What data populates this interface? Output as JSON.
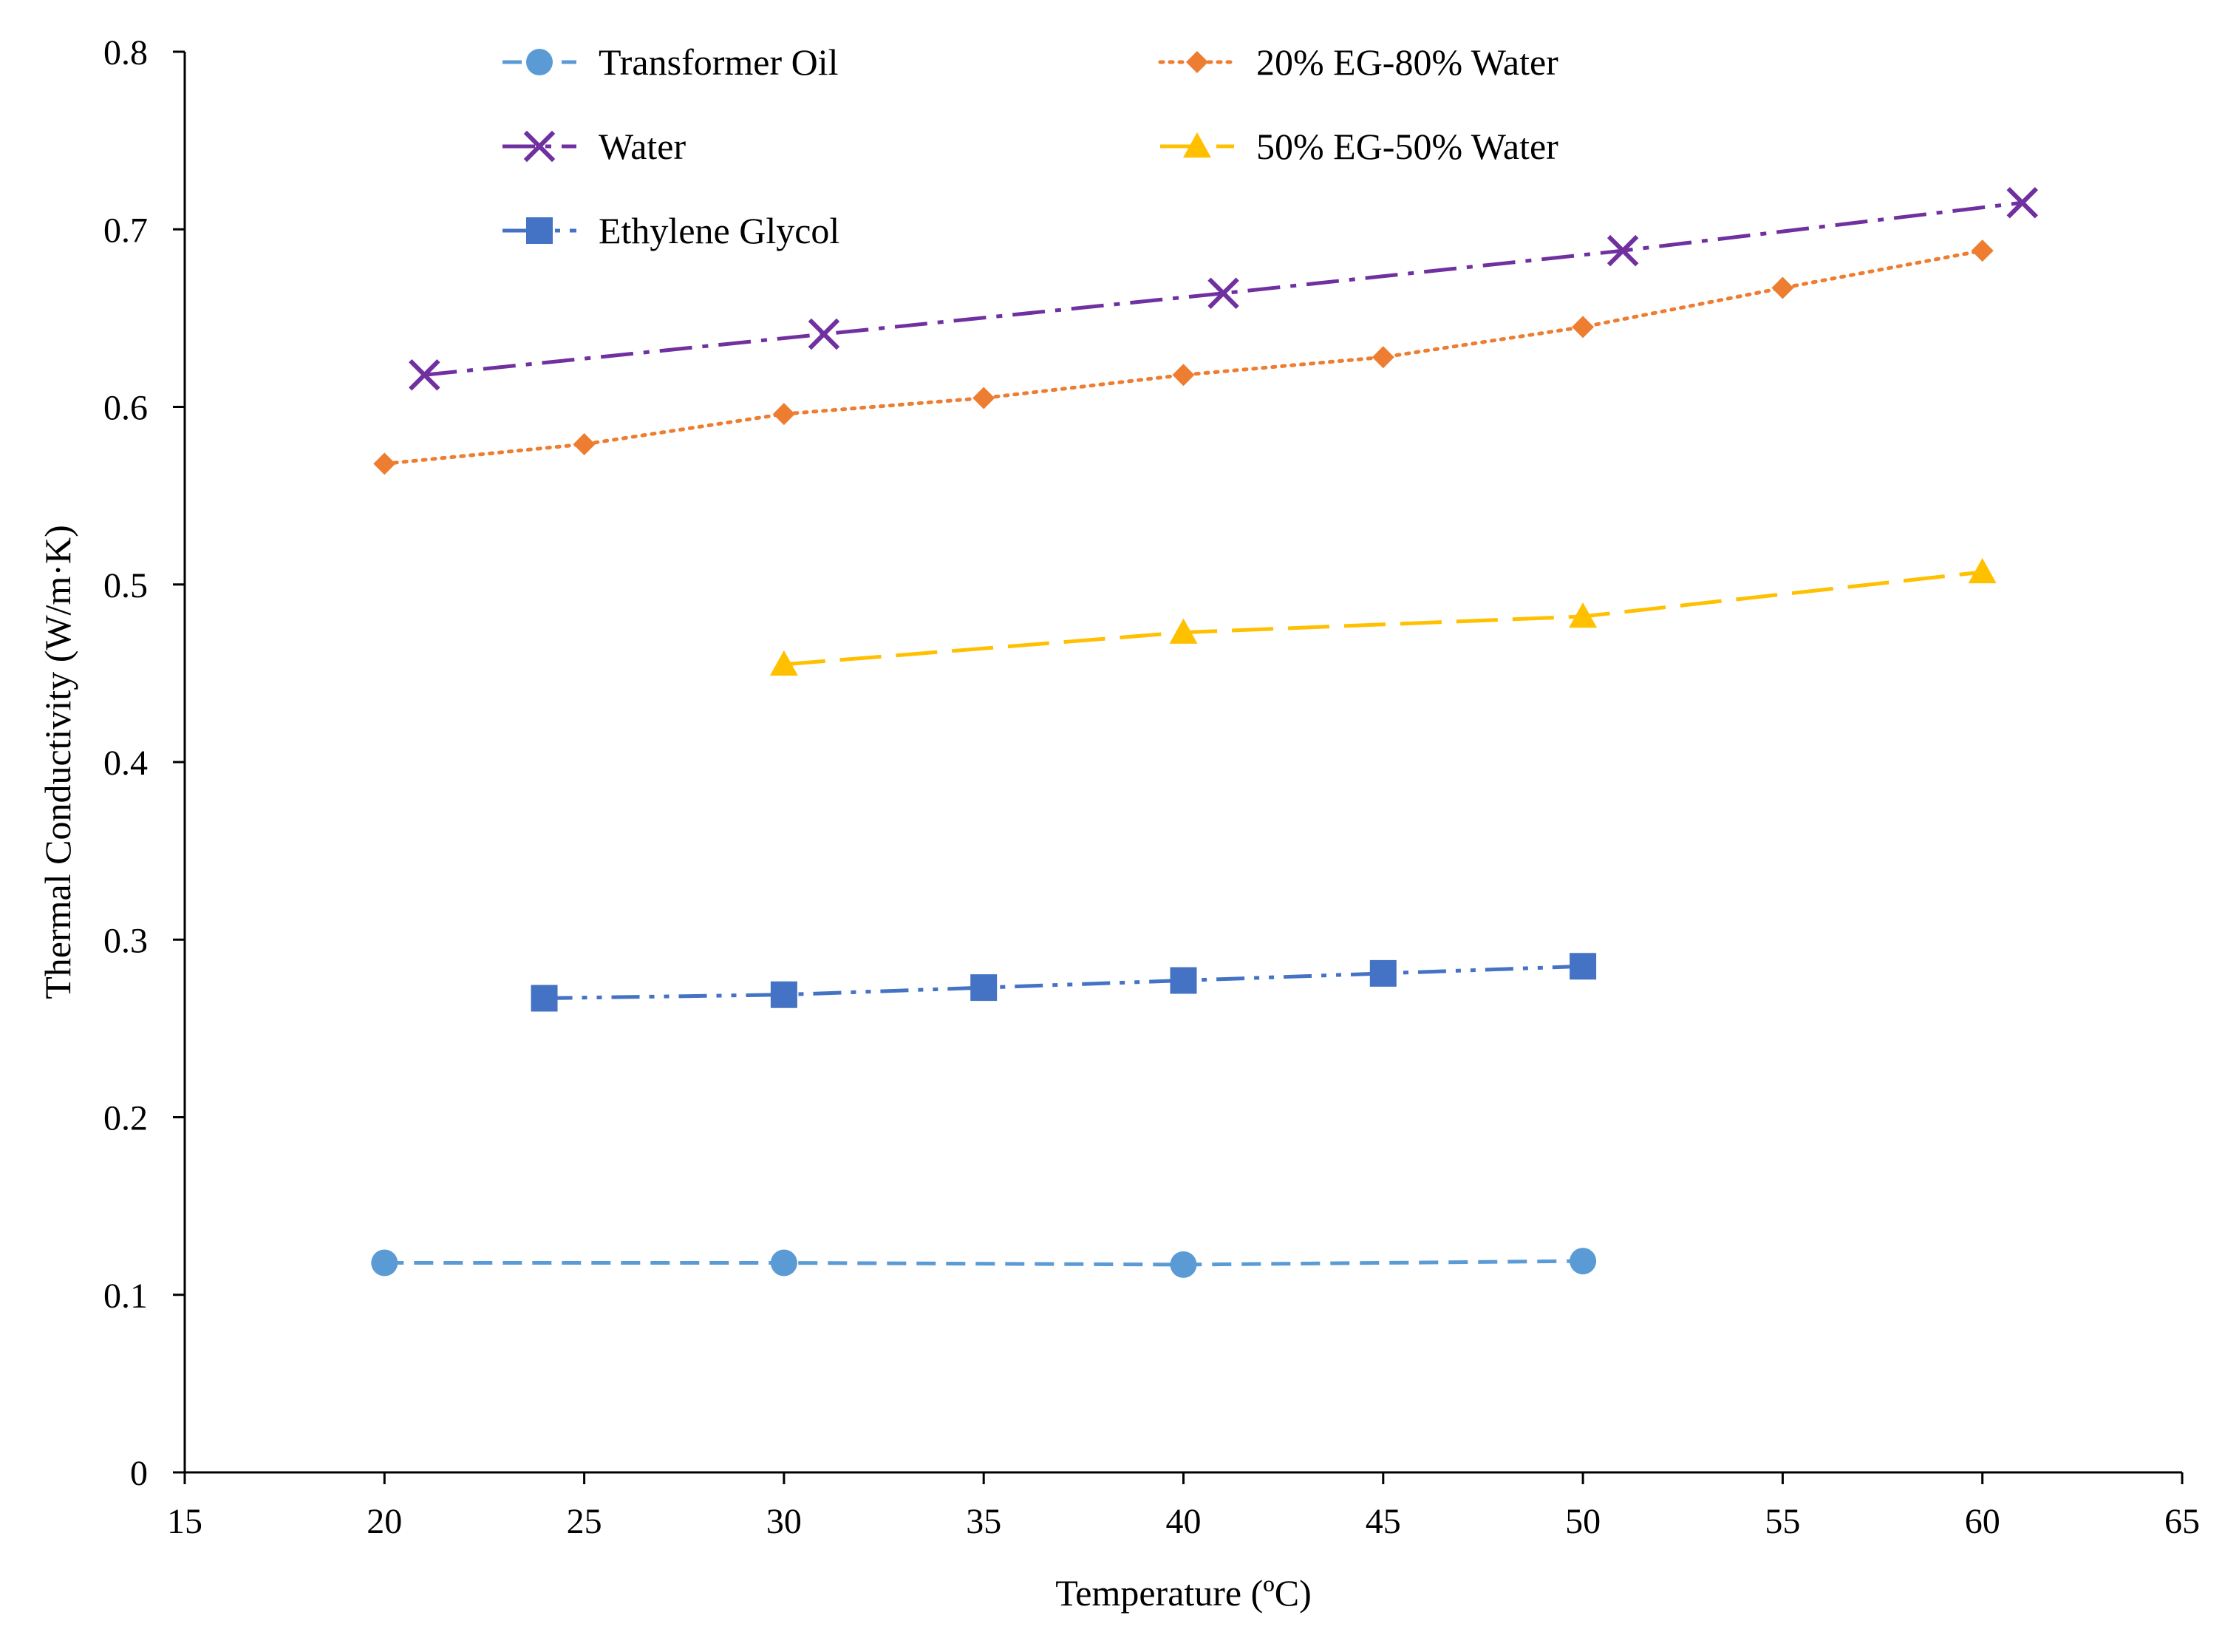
{
  "chart_data": {
    "type": "line",
    "title": "",
    "xlabel": "Temperature  (ºC)",
    "ylabel": "Thermal Conductivity  (W/m·K)",
    "xlim": [
      15,
      65
    ],
    "ylim": [
      0,
      0.8
    ],
    "xticks": [
      15,
      20,
      25,
      30,
      35,
      40,
      45,
      50,
      55,
      60,
      65
    ],
    "yticks": [
      0,
      0.1,
      0.2,
      0.3,
      0.4,
      0.5,
      0.6,
      0.7,
      0.8
    ],
    "grid": false,
    "legend_position": "top",
    "series": [
      {
        "name": "Transformer Oil",
        "color": "#5B9BD5",
        "marker": "circle",
        "line_style": "dashed",
        "x": [
          20,
          30,
          40,
          50
        ],
        "values": [
          0.118,
          0.118,
          0.117,
          0.119
        ]
      },
      {
        "name": "20% EG-80% Water",
        "color": "#ED7D31",
        "marker": "diamond",
        "line_style": "dotted",
        "x": [
          20,
          25,
          30,
          35,
          40,
          45,
          50,
          55,
          60
        ],
        "values": [
          0.568,
          0.579,
          0.596,
          0.605,
          0.618,
          0.628,
          0.645,
          0.667,
          0.688
        ]
      },
      {
        "name": "Water",
        "color": "#7030A0",
        "marker": "x",
        "line_style": "dash-dot",
        "x": [
          21,
          31,
          41,
          51,
          61
        ],
        "values": [
          0.618,
          0.641,
          0.664,
          0.688,
          0.715
        ]
      },
      {
        "name": "50% EG-50% Water",
        "color": "#FFC000",
        "marker": "triangle",
        "line_style": "long-dash",
        "x": [
          30,
          40,
          50,
          60
        ],
        "values": [
          0.455,
          0.473,
          0.482,
          0.507
        ]
      },
      {
        "name": "Ethylene Glycol",
        "color": "#4472C4",
        "marker": "square",
        "line_style": "dash-dot-dot",
        "x": [
          24,
          30,
          35,
          40,
          45,
          50
        ],
        "values": [
          0.267,
          0.269,
          0.273,
          0.277,
          0.281,
          0.285
        ]
      }
    ]
  }
}
